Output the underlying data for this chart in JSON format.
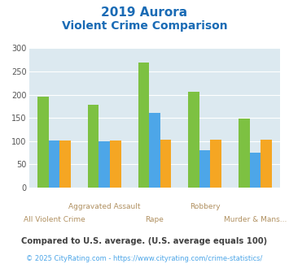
{
  "title_line1": "2019 Aurora",
  "title_line2": "Violent Crime Comparison",
  "categories": [
    "All Violent Crime",
    "Aggravated Assault",
    "Rape",
    "Robbery",
    "Murder & Mans..."
  ],
  "cat_labels_top": [
    "",
    "Aggravated Assault",
    "",
    "Robbery",
    ""
  ],
  "cat_labels_bot": [
    "All Violent Crime",
    "",
    "Rape",
    "",
    "Murder & Mans..."
  ],
  "series": {
    "Aurora": [
      195,
      178,
      270,
      206,
      148
    ],
    "Colorado": [
      101,
      100,
      160,
      80,
      75
    ],
    "National": [
      102,
      102,
      103,
      103,
      103
    ]
  },
  "colors": {
    "Aurora": "#7dc142",
    "Colorado": "#4da6e8",
    "National": "#f5a623"
  },
  "ylim": [
    0,
    300
  ],
  "yticks": [
    0,
    50,
    100,
    150,
    200,
    250,
    300
  ],
  "bar_width": 0.22,
  "plot_bg": "#dce9f0",
  "title_color": "#1a6bb5",
  "axis_label_color": "#b09060",
  "footer_note": "Compared to U.S. average. (U.S. average equals 100)",
  "footer_url": "© 2025 CityRating.com - https://www.cityrating.com/crime-statistics/",
  "footer_color": "#404040",
  "url_color": "#4da6e8",
  "legend_label_color": "#404040",
  "grid_color": "#ffffff"
}
